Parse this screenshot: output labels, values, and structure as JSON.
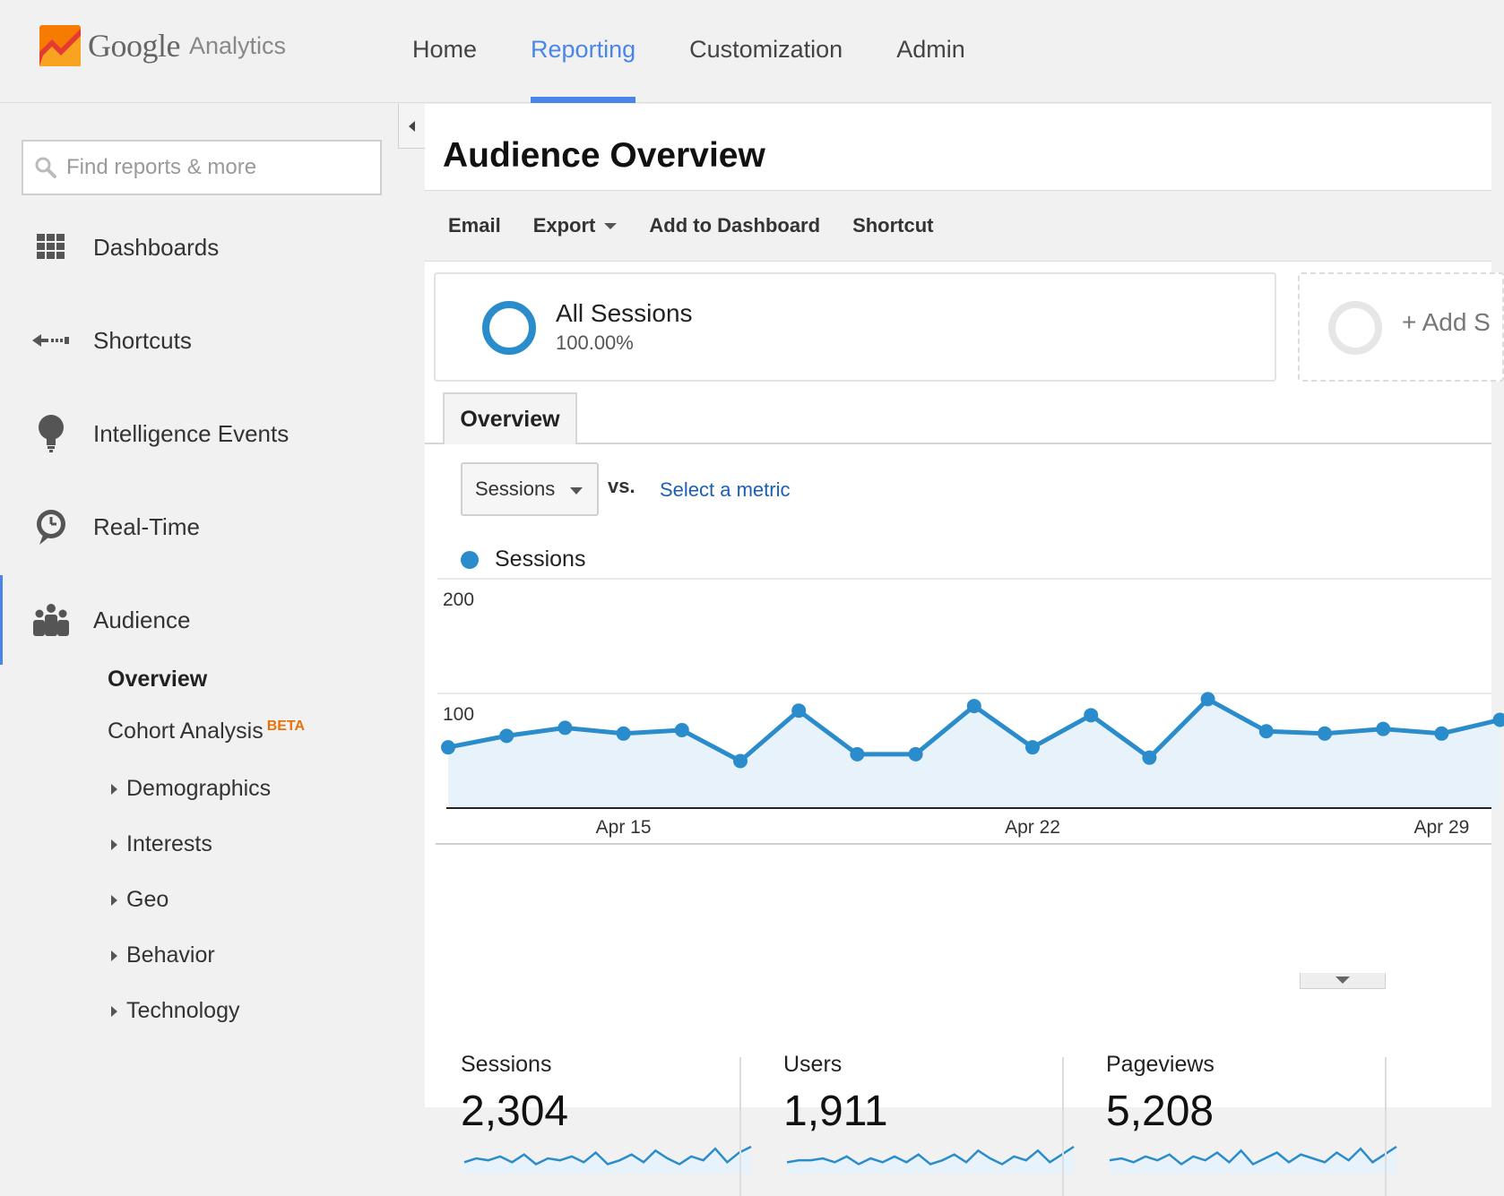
{
  "app": {
    "logo_google": "Google",
    "logo_analytics": "Analytics",
    "nav": [
      {
        "label": "Home",
        "active": false
      },
      {
        "label": "Reporting",
        "active": true
      },
      {
        "label": "Customization",
        "active": false
      },
      {
        "label": "Admin",
        "active": false
      }
    ],
    "accent_color": "#4a86e8"
  },
  "sidebar": {
    "search_placeholder": "Find reports & more",
    "items": [
      {
        "label": "Dashboards",
        "icon": "grid-icon"
      },
      {
        "label": "Shortcuts",
        "icon": "shortcut-arrow-icon"
      },
      {
        "label": "Intelligence Events",
        "icon": "lightbulb-icon"
      },
      {
        "label": "Real-Time",
        "icon": "clock-icon"
      },
      {
        "label": "Audience",
        "icon": "people-icon"
      }
    ],
    "audience_sub": {
      "overview": "Overview",
      "cohort": "Cohort Analysis",
      "cohort_badge": "BETA",
      "tree": [
        "Demographics",
        "Interests",
        "Geo",
        "Behavior",
        "Technology"
      ]
    }
  },
  "main": {
    "title": "Audience Overview",
    "actions": {
      "email": "Email",
      "export": "Export",
      "add_dashboard": "Add to Dashboard",
      "shortcut": "Shortcut"
    },
    "segment": {
      "name": "All Sessions",
      "percent": "100.00%"
    },
    "add_segment": "+ Add S",
    "tab": "Overview",
    "metric_select": "Sessions",
    "vs": "vs.",
    "select_metric": "Select a metric",
    "legend": "Sessions",
    "series_color": "#2b8ccb"
  },
  "chart_data": {
    "type": "area",
    "ylim": [
      0,
      200
    ],
    "yticks": [
      "200",
      "100"
    ],
    "xticks": [
      {
        "index": 3,
        "label": "Apr 15"
      },
      {
        "index": 10,
        "label": "Apr 22"
      },
      {
        "index": 17,
        "label": "Apr 29"
      }
    ],
    "series": [
      {
        "name": "Sessions",
        "values": [
          53,
          63,
          70,
          65,
          68,
          41,
          85,
          47,
          47,
          89,
          53,
          81,
          44,
          95,
          67,
          65,
          69,
          65,
          77
        ]
      }
    ],
    "grid": true
  },
  "stats": [
    {
      "name": "Sessions",
      "value": "2,304",
      "spark": [
        4,
        6,
        5,
        7,
        4,
        8,
        3,
        6,
        5,
        7,
        4,
        9,
        3,
        5,
        8,
        4,
        10,
        6,
        3,
        7,
        5,
        11,
        4,
        9,
        12
      ]
    },
    {
      "name": "Users",
      "value": "1,911",
      "spark": [
        4,
        5,
        5,
        6,
        4,
        7,
        3,
        6,
        4,
        7,
        4,
        8,
        3,
        5,
        8,
        4,
        10,
        6,
        3,
        7,
        5,
        10,
        4,
        8,
        12
      ]
    },
    {
      "name": "Pageviews",
      "value": "5,208",
      "spark": [
        5,
        6,
        4,
        7,
        5,
        8,
        3,
        7,
        5,
        9,
        4,
        10,
        3,
        6,
        9,
        4,
        8,
        6,
        4,
        9,
        5,
        11,
        4,
        8,
        12
      ]
    }
  ]
}
